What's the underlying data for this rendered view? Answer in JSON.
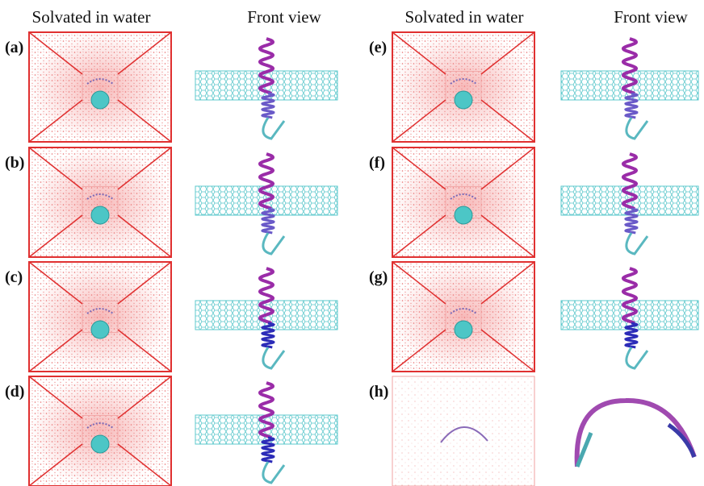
{
  "headers": [
    "Solvated in water",
    "Front view",
    "Solvated in water",
    "Front view"
  ],
  "panels": [
    {
      "label": "(a)"
    },
    {
      "label": "(b)"
    },
    {
      "label": "(c)"
    },
    {
      "label": "(d)"
    },
    {
      "label": "(e)"
    },
    {
      "label": "(f)"
    },
    {
      "label": "(g)"
    },
    {
      "label": "(h)"
    }
  ]
}
